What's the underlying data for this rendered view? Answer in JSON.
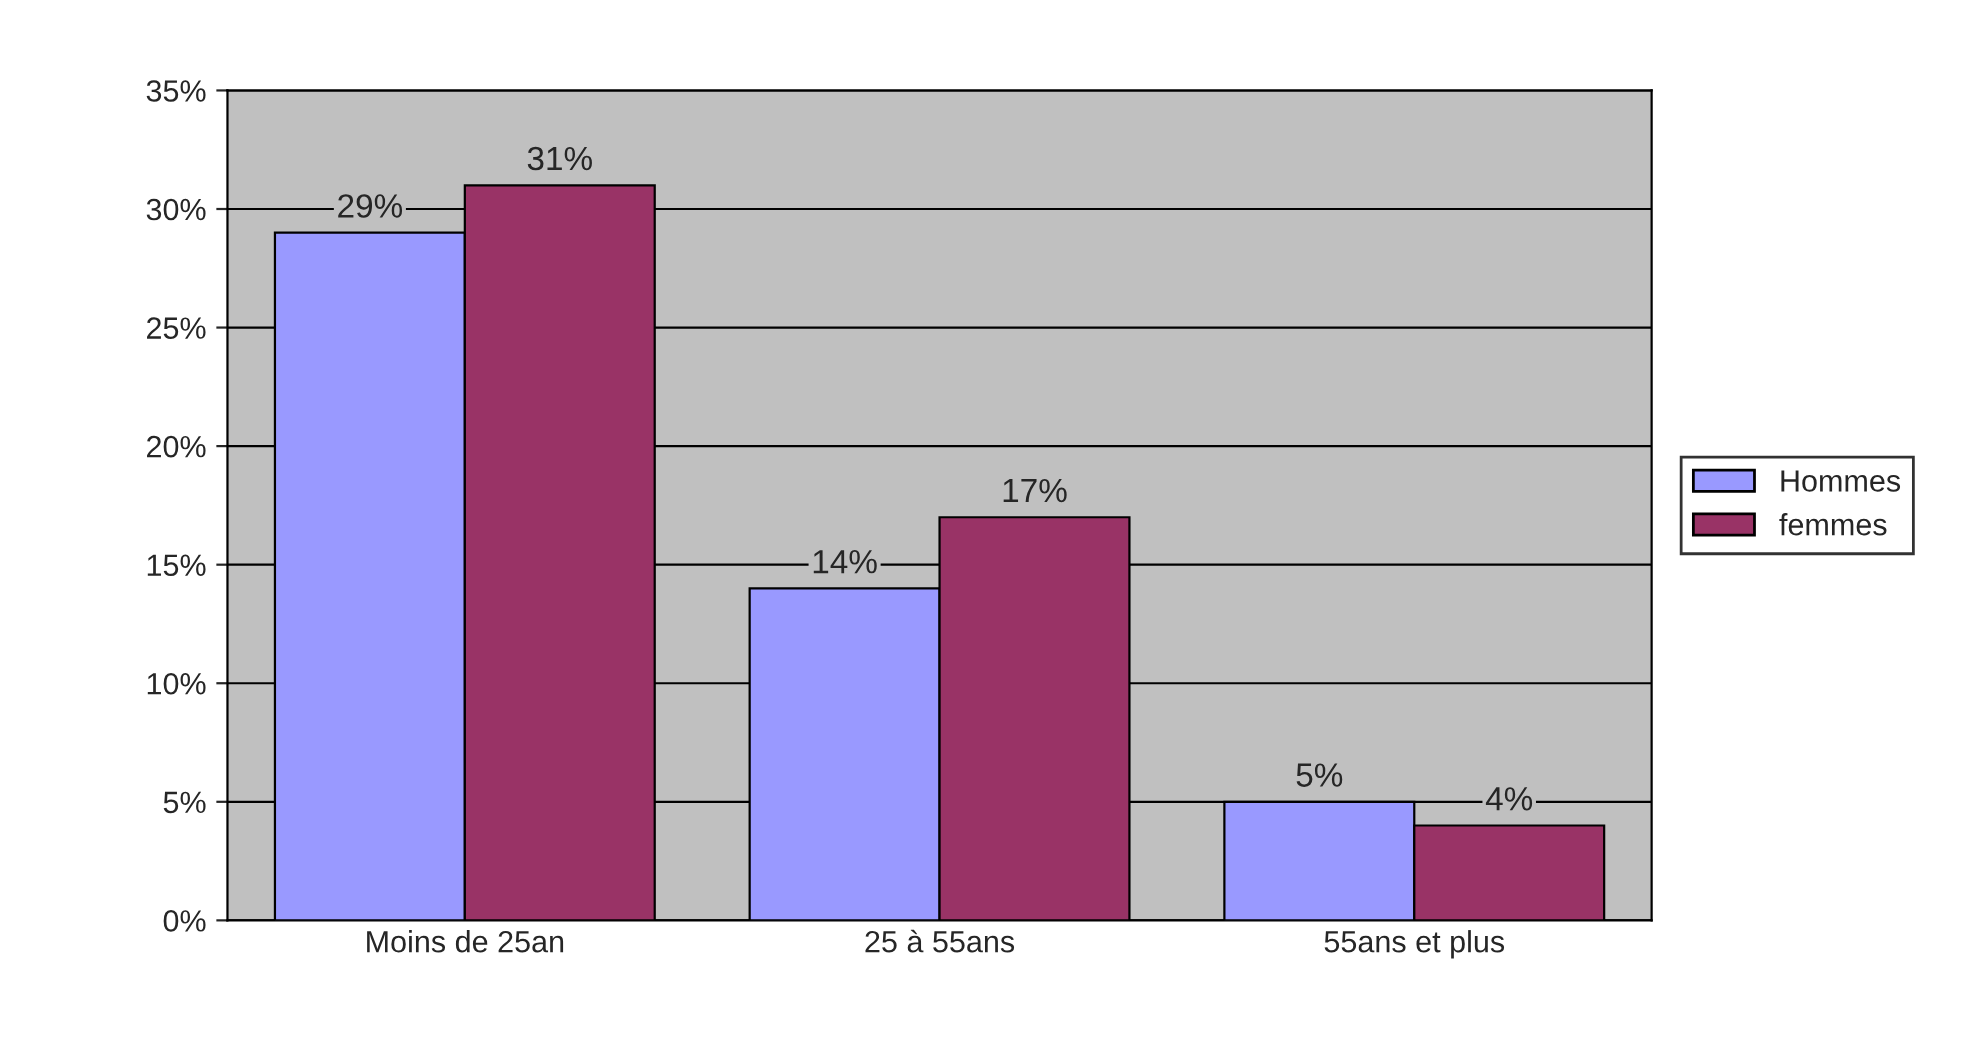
{
  "chart_data": {
    "type": "bar",
    "categories": [
      "Moins de 25an",
      "25 à 55ans",
      "55ans et plus"
    ],
    "series": [
      {
        "name": "Hommes",
        "color": "#9999ff",
        "values": [
          29,
          14,
          5
        ],
        "value_labels": [
          "29%",
          "14%",
          "5%"
        ]
      },
      {
        "name": "femmes",
        "color": "#993366",
        "values": [
          31,
          17,
          4
        ],
        "value_labels": [
          "31%",
          "17%",
          "4%"
        ]
      }
    ],
    "ylim": [
      0,
      35
    ],
    "yticks": [
      {
        "value": 0,
        "label": "0%"
      },
      {
        "value": 5,
        "label": "5%"
      },
      {
        "value": 10,
        "label": "10%"
      },
      {
        "value": 15,
        "label": "15%"
      },
      {
        "value": 20,
        "label": "20%"
      },
      {
        "value": 25,
        "label": "25%"
      },
      {
        "value": 30,
        "label": "30%"
      },
      {
        "value": 35,
        "label": "35%"
      }
    ],
    "grid": "y",
    "legend": "right"
  }
}
